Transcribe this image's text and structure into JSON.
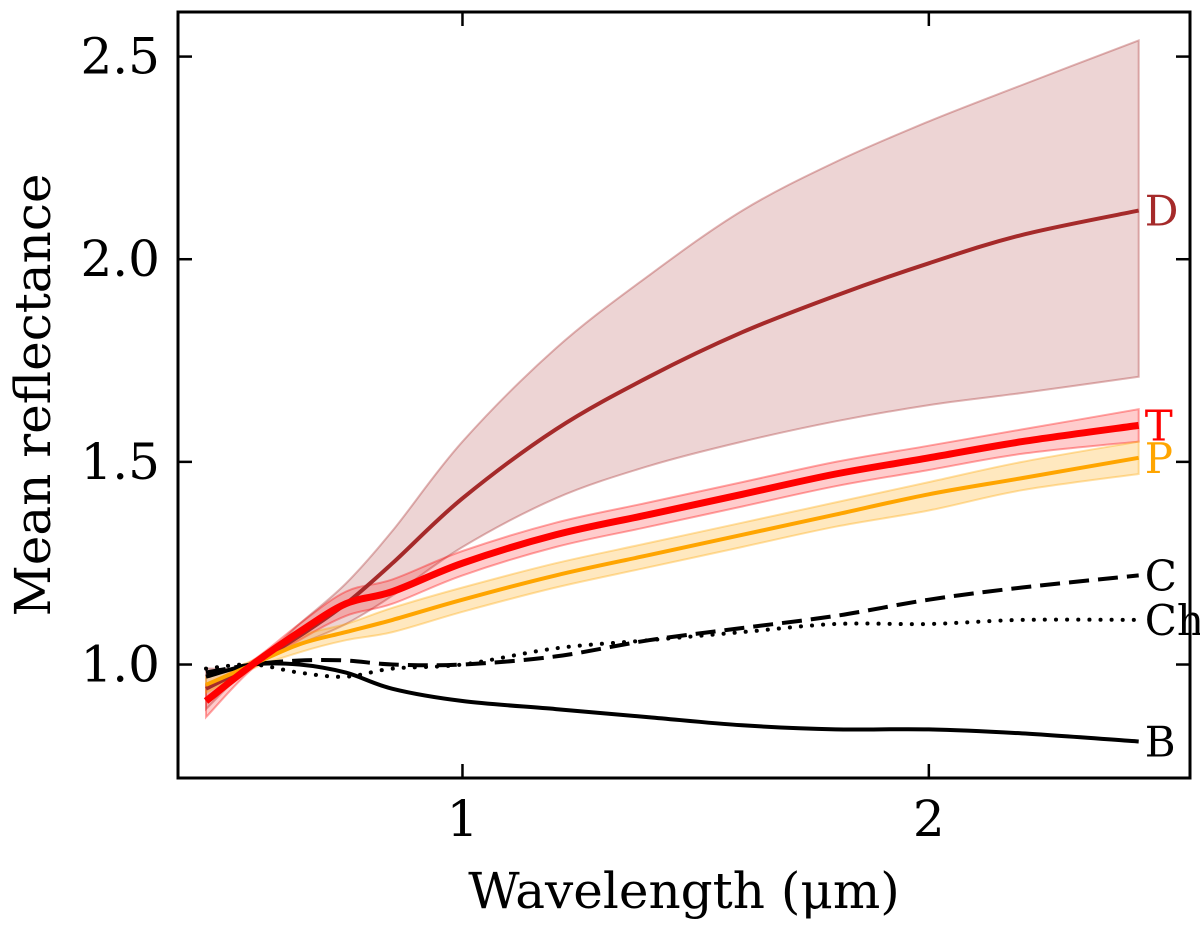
{
  "chart_data": {
    "type": "line",
    "title": "",
    "xlabel": "Wavelength (μm)",
    "ylabel": "Mean reflectance",
    "xlim": [
      0.39,
      2.56
    ],
    "ylim": [
      0.72,
      2.61
    ],
    "xticks": [
      {
        "value": 1,
        "label": "1"
      },
      {
        "value": 2,
        "label": "2"
      }
    ],
    "yticks": [
      {
        "value": 1.0,
        "label": "1.0"
      },
      {
        "value": 1.5,
        "label": "1.5"
      },
      {
        "value": 2.0,
        "label": "2.0"
      },
      {
        "value": 2.5,
        "label": "2.5"
      }
    ],
    "grid": false,
    "series": [
      {
        "name": "D",
        "label": "D",
        "color": "#a52a2a",
        "label_color": "#a52a2a",
        "style": "solid",
        "linewidth": 4,
        "band_color": "#a52a2a",
        "band_opacity": 0.2,
        "x": [
          0.45,
          0.55,
          0.65,
          0.75,
          0.85,
          1.0,
          1.2,
          1.4,
          1.6,
          1.8,
          2.0,
          2.2,
          2.45
        ],
        "y": [
          0.94,
          1.0,
          1.07,
          1.15,
          1.25,
          1.41,
          1.58,
          1.71,
          1.82,
          1.91,
          1.99,
          2.06,
          2.12
        ],
        "lower": [
          0.89,
          1.0,
          1.05,
          1.1,
          1.17,
          1.29,
          1.41,
          1.49,
          1.55,
          1.6,
          1.64,
          1.67,
          1.71
        ],
        "upper": [
          0.99,
          1.0,
          1.1,
          1.2,
          1.33,
          1.55,
          1.78,
          1.96,
          2.12,
          2.24,
          2.34,
          2.43,
          2.54
        ]
      },
      {
        "name": "T",
        "label": "T",
        "color": "#ff0000",
        "label_color": "#ff0000",
        "style": "solid",
        "linewidth": 7,
        "band_color": "#ff0000",
        "band_opacity": 0.2,
        "x": [
          0.45,
          0.55,
          0.65,
          0.75,
          0.85,
          1.0,
          1.2,
          1.4,
          1.6,
          1.8,
          2.0,
          2.2,
          2.45
        ],
        "y": [
          0.91,
          1.0,
          1.08,
          1.15,
          1.18,
          1.25,
          1.32,
          1.37,
          1.42,
          1.47,
          1.51,
          1.55,
          1.59
        ],
        "lower": [
          0.87,
          0.99,
          1.06,
          1.12,
          1.15,
          1.22,
          1.29,
          1.34,
          1.39,
          1.44,
          1.48,
          1.52,
          1.55
        ],
        "upper": [
          0.95,
          1.01,
          1.1,
          1.18,
          1.21,
          1.28,
          1.35,
          1.4,
          1.45,
          1.5,
          1.54,
          1.58,
          1.63
        ]
      },
      {
        "name": "P",
        "label": "P",
        "color": "#ffa500",
        "label_color": "#ffa500",
        "style": "solid",
        "linewidth": 4,
        "band_color": "#ffa500",
        "band_opacity": 0.25,
        "x": [
          0.45,
          0.55,
          0.65,
          0.75,
          0.85,
          1.0,
          1.2,
          1.4,
          1.6,
          1.8,
          2.0,
          2.2,
          2.45
        ],
        "y": [
          0.95,
          1.0,
          1.05,
          1.08,
          1.11,
          1.16,
          1.22,
          1.27,
          1.32,
          1.37,
          1.42,
          1.46,
          1.51
        ],
        "lower": [
          0.93,
          0.99,
          1.03,
          1.06,
          1.08,
          1.13,
          1.19,
          1.24,
          1.29,
          1.34,
          1.38,
          1.43,
          1.47
        ],
        "upper": [
          0.97,
          1.01,
          1.07,
          1.1,
          1.14,
          1.19,
          1.25,
          1.3,
          1.35,
          1.4,
          1.45,
          1.5,
          1.55
        ]
      },
      {
        "name": "C",
        "label": "C",
        "color": "#000000",
        "label_color": "#000000",
        "style": "dashed",
        "linewidth": 4,
        "x": [
          0.45,
          0.55,
          0.65,
          0.75,
          0.85,
          1.0,
          1.2,
          1.4,
          1.6,
          1.8,
          2.0,
          2.2,
          2.45
        ],
        "y": [
          0.98,
          1.0,
          1.01,
          1.01,
          1.0,
          1.0,
          1.02,
          1.06,
          1.09,
          1.12,
          1.16,
          1.19,
          1.22
        ]
      },
      {
        "name": "Ch",
        "label": "Ch",
        "color": "#000000",
        "label_color": "#000000",
        "style": "dotted",
        "linewidth": 4,
        "x": [
          0.45,
          0.55,
          0.65,
          0.75,
          0.85,
          1.0,
          1.2,
          1.4,
          1.6,
          1.8,
          2.0,
          2.2,
          2.45
        ],
        "y": [
          0.99,
          1.0,
          0.98,
          0.97,
          0.99,
          1.0,
          1.04,
          1.06,
          1.08,
          1.1,
          1.1,
          1.11,
          1.11
        ]
      },
      {
        "name": "B",
        "label": "B",
        "color": "#000000",
        "label_color": "#000000",
        "style": "solid",
        "linewidth": 4,
        "x": [
          0.45,
          0.55,
          0.65,
          0.75,
          0.85,
          1.0,
          1.2,
          1.4,
          1.6,
          1.8,
          2.0,
          2.2,
          2.45
        ],
        "y": [
          0.97,
          1.0,
          1.0,
          0.98,
          0.94,
          0.91,
          0.89,
          0.87,
          0.85,
          0.84,
          0.84,
          0.83,
          0.81
        ]
      }
    ]
  }
}
